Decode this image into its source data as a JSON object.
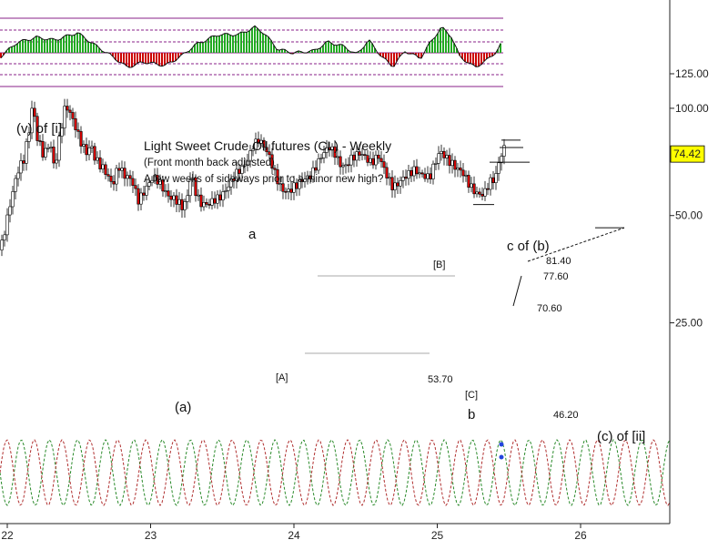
{
  "chart_data": {
    "type": "candlestick",
    "title": "Light Sweet Crude Oil futures (CL) - Weekly",
    "subtitle": "(Front month back adjusted)",
    "note": "A few weeks of sideways prior to a minor new high?",
    "y_scale": "log",
    "ylim": [
      22,
      140
    ],
    "xlim": [
      22.0,
      26.6
    ],
    "y_ticks": [
      {
        "value": 125,
        "label": "125.00"
      },
      {
        "value": 100,
        "label": "100.00"
      },
      {
        "value": 50,
        "label": "50.00"
      },
      {
        "value": 25,
        "label": "25.00"
      }
    ],
    "x_ticks": [
      {
        "value": 22,
        "label": "22"
      },
      {
        "value": 23,
        "label": "23"
      },
      {
        "value": 24,
        "label": "24"
      },
      {
        "value": 25,
        "label": "25"
      },
      {
        "value": 26,
        "label": "26"
      }
    ],
    "last_price": {
      "value": 74.42,
      "label": "74.42",
      "color": "#ffff00"
    },
    "wave_labels": [
      {
        "text": "(v) of [i]",
        "x": 22.06,
        "y": 105
      },
      {
        "text": "a",
        "x": 23.71,
        "y": 85
      },
      {
        "text": "(a)",
        "x": 23.18,
        "y": 47
      },
      {
        "text": "[A]",
        "x": 23.95,
        "y": 55.5
      },
      {
        "text": "[B]",
        "x": 25.02,
        "y": 79.5
      },
      {
        "text": "[C]",
        "x": 25.26,
        "y": 51
      },
      {
        "text": "b",
        "x": 25.24,
        "y": 46.5
      },
      {
        "text": "c of (b)",
        "x": 25.48,
        "y": 84
      },
      {
        "text": "(c) of [ii]",
        "x": 26.1,
        "y": 40.5
      }
    ],
    "price_levels": [
      {
        "value": 81.4,
        "label": "81.40"
      },
      {
        "value": 77.6,
        "label": "77.60"
      },
      {
        "value": 70.6,
        "label": "70.60"
      },
      {
        "value": 53.7,
        "label": "53.70"
      },
      {
        "value": 46.2,
        "label": "46.20"
      }
    ],
    "colors": {
      "up": "#ffffff",
      "down": "#cc0000",
      "candle_outline": "#000000",
      "histogram_up": "#22aa22",
      "histogram_down": "#cc0000",
      "cycle_green": "#2a8a2a",
      "cycle_red": "#b03030",
      "band_line": "#882288"
    }
  }
}
